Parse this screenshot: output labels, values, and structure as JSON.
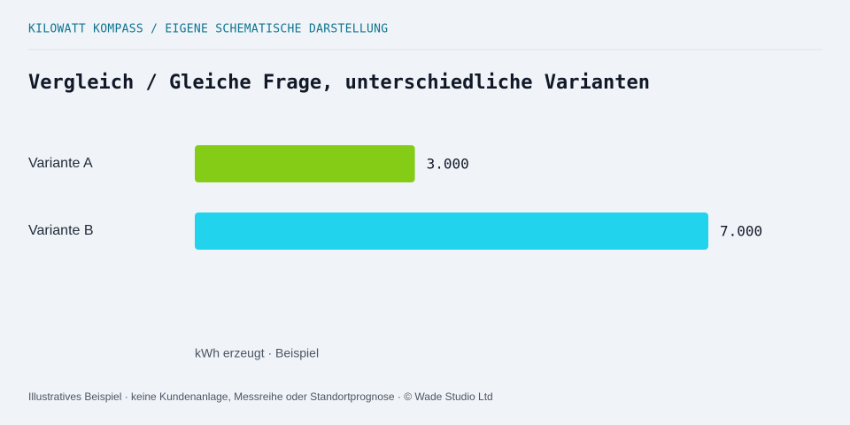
{
  "chart_data": {
    "type": "hbar",
    "header": "KILOWATT KOMPASS / EIGENE SCHEMATISCHE DARSTELLUNG",
    "title": "Vergleich / Gleiche Frage, unterschiedliche Varianten",
    "categories": [
      "Variante A",
      "Variante B"
    ],
    "values": [
      3000,
      7000
    ],
    "value_labels": [
      "3.000",
      "7.000"
    ],
    "colors": [
      "#84cc16",
      "#22d3ee"
    ],
    "unit_label": "kWh erzeugt · Beispiel",
    "footer": "Illustratives Beispiel · keine Kundenanlage, Messreihe oder Standortprognose · © Wade Studio Ltd"
  }
}
